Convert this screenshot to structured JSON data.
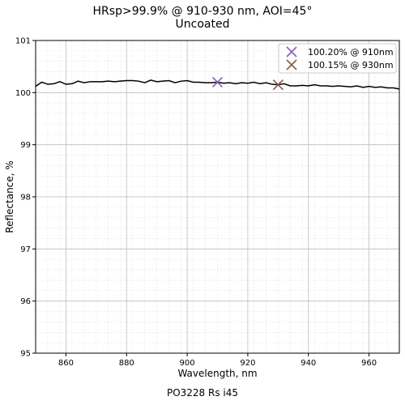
{
  "chart_data": {
    "type": "line",
    "title": "HRsp>99.9% @ 910-930 nm, AOI=45°",
    "subtitle": "Uncoated",
    "xlabel": "Wavelength, nm",
    "ylabel": "Reflectance, %",
    "footer": "PO3228 Rs i45",
    "xlim": [
      850,
      970
    ],
    "ylim": [
      95,
      101
    ],
    "xticks": [
      860,
      880,
      900,
      920,
      940,
      960
    ],
    "yticks": [
      95,
      96,
      97,
      98,
      99,
      100,
      101
    ],
    "grid": true,
    "legend_position": "top-right",
    "series": [
      {
        "color": "#000000",
        "x": [
          850,
          852,
          854,
          856,
          858,
          860,
          862,
          864,
          866,
          868,
          870,
          872,
          874,
          876,
          878,
          880,
          882,
          884,
          886,
          888,
          890,
          892,
          894,
          896,
          898,
          900,
          902,
          904,
          906,
          908,
          910,
          912,
          914,
          916,
          918,
          920,
          922,
          924,
          926,
          928,
          930,
          932,
          934,
          936,
          938,
          940,
          942,
          944,
          946,
          948,
          950,
          952,
          954,
          956,
          958,
          960,
          962,
          964,
          966,
          968,
          970
        ],
        "y": [
          100.12,
          100.2,
          100.16,
          100.17,
          100.21,
          100.16,
          100.17,
          100.22,
          100.19,
          100.21,
          100.21,
          100.21,
          100.22,
          100.21,
          100.22,
          100.23,
          100.23,
          100.22,
          100.19,
          100.24,
          100.21,
          100.22,
          100.23,
          100.19,
          100.22,
          100.23,
          100.2,
          100.2,
          100.19,
          100.19,
          100.2,
          100.18,
          100.19,
          100.17,
          100.19,
          100.18,
          100.2,
          100.17,
          100.19,
          100.16,
          100.15,
          100.17,
          100.13,
          100.13,
          100.14,
          100.13,
          100.15,
          100.13,
          100.13,
          100.12,
          100.13,
          100.12,
          100.11,
          100.13,
          100.1,
          100.12,
          100.1,
          100.11,
          100.09,
          100.09,
          100.07
        ]
      }
    ],
    "markers": [
      {
        "label": "100.20% @ 910nm",
        "x": 910,
        "y": 100.2,
        "color": "#8a5fb0"
      },
      {
        "label": "100.15% @ 930nm",
        "x": 930,
        "y": 100.15,
        "color": "#8c564b"
      }
    ]
  }
}
